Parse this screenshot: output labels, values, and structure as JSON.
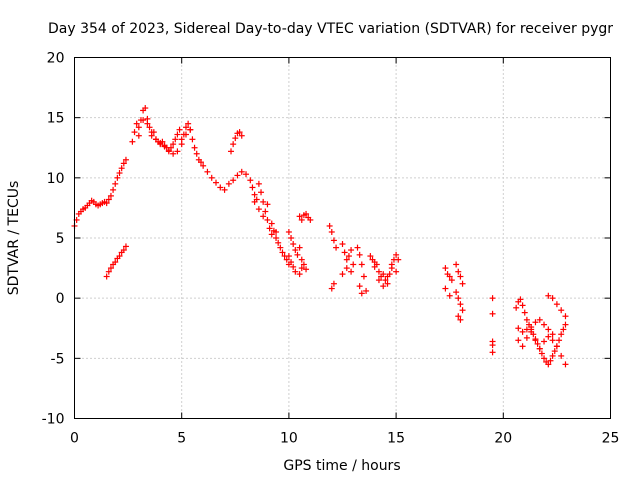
{
  "chart_data": {
    "type": "scatter",
    "title": "Day 354 of 2023, Sidereal Day-to-day VTEC variation (SDTVAR) for receiver pygr",
    "xlabel": "GPS time / hours",
    "ylabel": "SDTVAR / TECUs",
    "xlim": [
      0,
      25
    ],
    "ylim": [
      -10,
      20
    ],
    "xticks": [
      0,
      5,
      10,
      15,
      20,
      25
    ],
    "yticks": [
      -10,
      -5,
      0,
      5,
      10,
      15,
      20
    ],
    "xtick_labels": [
      "0",
      "5",
      "10",
      "15",
      "20",
      "25"
    ],
    "ytick_labels": [
      "-10",
      "-5",
      "0",
      "5",
      "10",
      "15",
      "20"
    ],
    "grid": true,
    "marker": "+",
    "color": "#ff0000",
    "series": [
      {
        "name": "SDTVAR",
        "x": [
          0.0,
          0.1,
          0.2,
          0.3,
          0.4,
          0.5,
          0.6,
          0.7,
          0.8,
          0.9,
          1.0,
          1.1,
          1.2,
          1.3,
          1.4,
          1.5,
          1.6,
          1.7,
          1.8,
          1.9,
          2.0,
          2.1,
          2.2,
          2.3,
          2.4,
          1.5,
          1.6,
          1.7,
          1.8,
          1.9,
          2.0,
          2.1,
          2.2,
          2.3,
          2.4,
          2.7,
          2.8,
          2.9,
          3.0,
          3.1,
          3.2,
          3.3,
          3.4,
          3.5,
          3.6,
          3.7,
          3.8,
          3.9,
          4.0,
          4.1,
          4.2,
          4.3,
          4.4,
          4.5,
          4.6,
          4.7,
          4.8,
          4.9,
          5.0,
          5.1,
          5.2,
          5.3,
          5.4,
          5.5,
          5.6,
          5.7,
          5.8,
          5.9,
          6.0,
          3.0,
          3.2,
          3.4,
          3.6,
          3.8,
          4.0,
          4.2,
          4.4,
          4.6,
          4.8,
          5.0,
          5.2,
          5.4,
          6.2,
          6.4,
          6.6,
          6.8,
          7.0,
          7.2,
          7.4,
          7.6,
          7.8,
          8.0,
          7.3,
          7.4,
          7.5,
          7.6,
          7.7,
          7.8,
          8.2,
          8.3,
          8.4,
          8.5,
          8.6,
          8.7,
          8.8,
          8.9,
          9.0,
          9.1,
          9.2,
          9.3,
          9.4,
          9.5,
          9.6,
          9.7,
          9.8,
          9.9,
          10.0,
          8.4,
          8.6,
          8.8,
          9.0,
          9.2,
          9.4,
          10.0,
          10.1,
          10.2,
          10.3,
          10.4,
          10.5,
          10.6,
          10.7,
          10.8,
          10.0,
          10.1,
          10.2,
          10.3,
          10.5,
          10.6,
          10.5,
          10.6,
          10.7,
          10.8,
          10.9,
          11.0,
          11.9,
          12.0,
          12.1,
          12.2,
          12.0,
          12.1,
          12.5,
          12.6,
          12.7,
          12.8,
          12.9,
          13.0,
          12.5,
          12.7,
          12.9,
          13.2,
          13.3,
          13.4,
          13.5,
          13.3,
          13.4,
          13.6,
          13.8,
          13.9,
          14.0,
          14.1,
          14.2,
          14.3,
          14.4,
          14.5,
          14.6,
          14.7,
          14.8,
          14.9,
          15.0,
          15.1,
          14.0,
          14.2,
          14.4,
          14.6,
          14.8,
          15.0,
          17.3,
          17.4,
          17.5,
          17.6,
          17.3,
          17.5,
          17.8,
          17.9,
          18.0,
          18.1,
          17.8,
          17.9,
          18.0,
          18.1,
          17.9,
          18.0,
          19.5,
          19.5,
          19.5,
          19.5,
          19.5,
          20.6,
          20.7,
          20.8,
          20.9,
          21.0,
          21.1,
          21.2,
          21.3,
          21.4,
          21.5,
          21.6,
          21.7,
          21.8,
          21.9,
          22.0,
          22.1,
          22.2,
          22.3,
          22.4,
          22.5,
          22.6,
          22.7,
          22.8,
          22.9,
          20.7,
          20.9,
          21.1,
          21.3,
          21.5,
          21.7,
          21.9,
          22.1,
          22.3,
          22.5,
          22.7,
          22.9,
          20.7,
          20.9,
          21.1,
          21.3,
          21.5,
          21.7,
          21.9,
          22.1,
          22.3,
          22.1,
          22.3,
          22.5,
          22.7,
          22.9
        ],
        "y": [
          6.0,
          6.5,
          7.0,
          7.2,
          7.4,
          7.5,
          7.7,
          7.9,
          8.1,
          8.0,
          7.8,
          7.7,
          7.8,
          7.9,
          8.0,
          7.9,
          8.2,
          8.5,
          9.0,
          9.5,
          10.0,
          10.4,
          10.8,
          11.2,
          11.5,
          1.8,
          2.2,
          2.5,
          2.8,
          3.0,
          3.3,
          3.5,
          3.8,
          4.0,
          4.3,
          13.0,
          13.8,
          14.5,
          14.2,
          14.8,
          15.6,
          15.8,
          14.9,
          14.2,
          13.5,
          13.8,
          13.2,
          13.0,
          12.8,
          13.0,
          12.7,
          12.5,
          12.2,
          12.5,
          12.8,
          13.2,
          13.6,
          14.0,
          13.2,
          13.6,
          14.2,
          14.5,
          14.0,
          13.2,
          12.5,
          12.0,
          11.5,
          11.3,
          11.0,
          13.5,
          14.8,
          14.5,
          13.8,
          13.2,
          12.9,
          12.6,
          12.3,
          12.0,
          12.2,
          12.8,
          13.6,
          14.0,
          10.5,
          10.0,
          9.6,
          9.2,
          9.0,
          9.5,
          9.8,
          10.2,
          10.5,
          10.3,
          12.2,
          12.8,
          13.3,
          13.7,
          13.8,
          13.5,
          9.8,
          9.2,
          8.6,
          8.2,
          9.5,
          8.8,
          8.0,
          7.2,
          6.5,
          5.8,
          5.3,
          5.6,
          5.0,
          4.6,
          4.2,
          3.8,
          3.5,
          3.2,
          2.8,
          8.0,
          7.4,
          6.8,
          7.8,
          6.2,
          5.5,
          5.5,
          5.0,
          4.5,
          4.0,
          3.6,
          4.2,
          3.2,
          2.8,
          2.4,
          3.5,
          3.0,
          2.6,
          2.2,
          2.0,
          2.5,
          6.8,
          6.5,
          6.9,
          7.0,
          6.7,
          6.5,
          6.0,
          5.5,
          4.8,
          4.2,
          0.8,
          1.2,
          4.5,
          3.8,
          3.2,
          3.5,
          4.0,
          2.8,
          2.0,
          2.5,
          2.2,
          4.2,
          3.6,
          2.8,
          1.8,
          1.0,
          0.4,
          0.6,
          3.5,
          3.2,
          3.0,
          2.8,
          2.2,
          1.8,
          2.0,
          1.5,
          1.2,
          2.0,
          2.5,
          3.2,
          3.6,
          3.2,
          2.6,
          1.5,
          1.0,
          1.8,
          2.8,
          2.2,
          2.5,
          2.0,
          1.8,
          1.5,
          0.8,
          0.2,
          2.8,
          2.2,
          1.8,
          1.2,
          0.5,
          0.0,
          -0.5,
          -1.0,
          -1.5,
          -1.8,
          0.0,
          -1.3,
          -3.6,
          -3.9,
          -4.5,
          -0.8,
          -0.3,
          -0.1,
          -0.6,
          -1.2,
          -1.8,
          -2.2,
          -2.6,
          -3.0,
          -3.4,
          -3.8,
          -4.2,
          -4.6,
          -5.0,
          -5.3,
          -5.5,
          -5.2,
          -4.8,
          -4.4,
          -4.0,
          -3.5,
          -3.0,
          -2.6,
          -2.2,
          -3.5,
          -4.0,
          -3.3,
          -2.8,
          -3.5,
          -4.2,
          -3.6,
          -3.2,
          -3.5,
          -4.0,
          -4.8,
          -5.5,
          -2.5,
          -2.8,
          -2.6,
          -2.4,
          -2.0,
          -1.8,
          -2.2,
          -2.6,
          -3.0,
          0.2,
          0.0,
          -0.5,
          -1.0,
          -1.5
        ]
      }
    ]
  }
}
